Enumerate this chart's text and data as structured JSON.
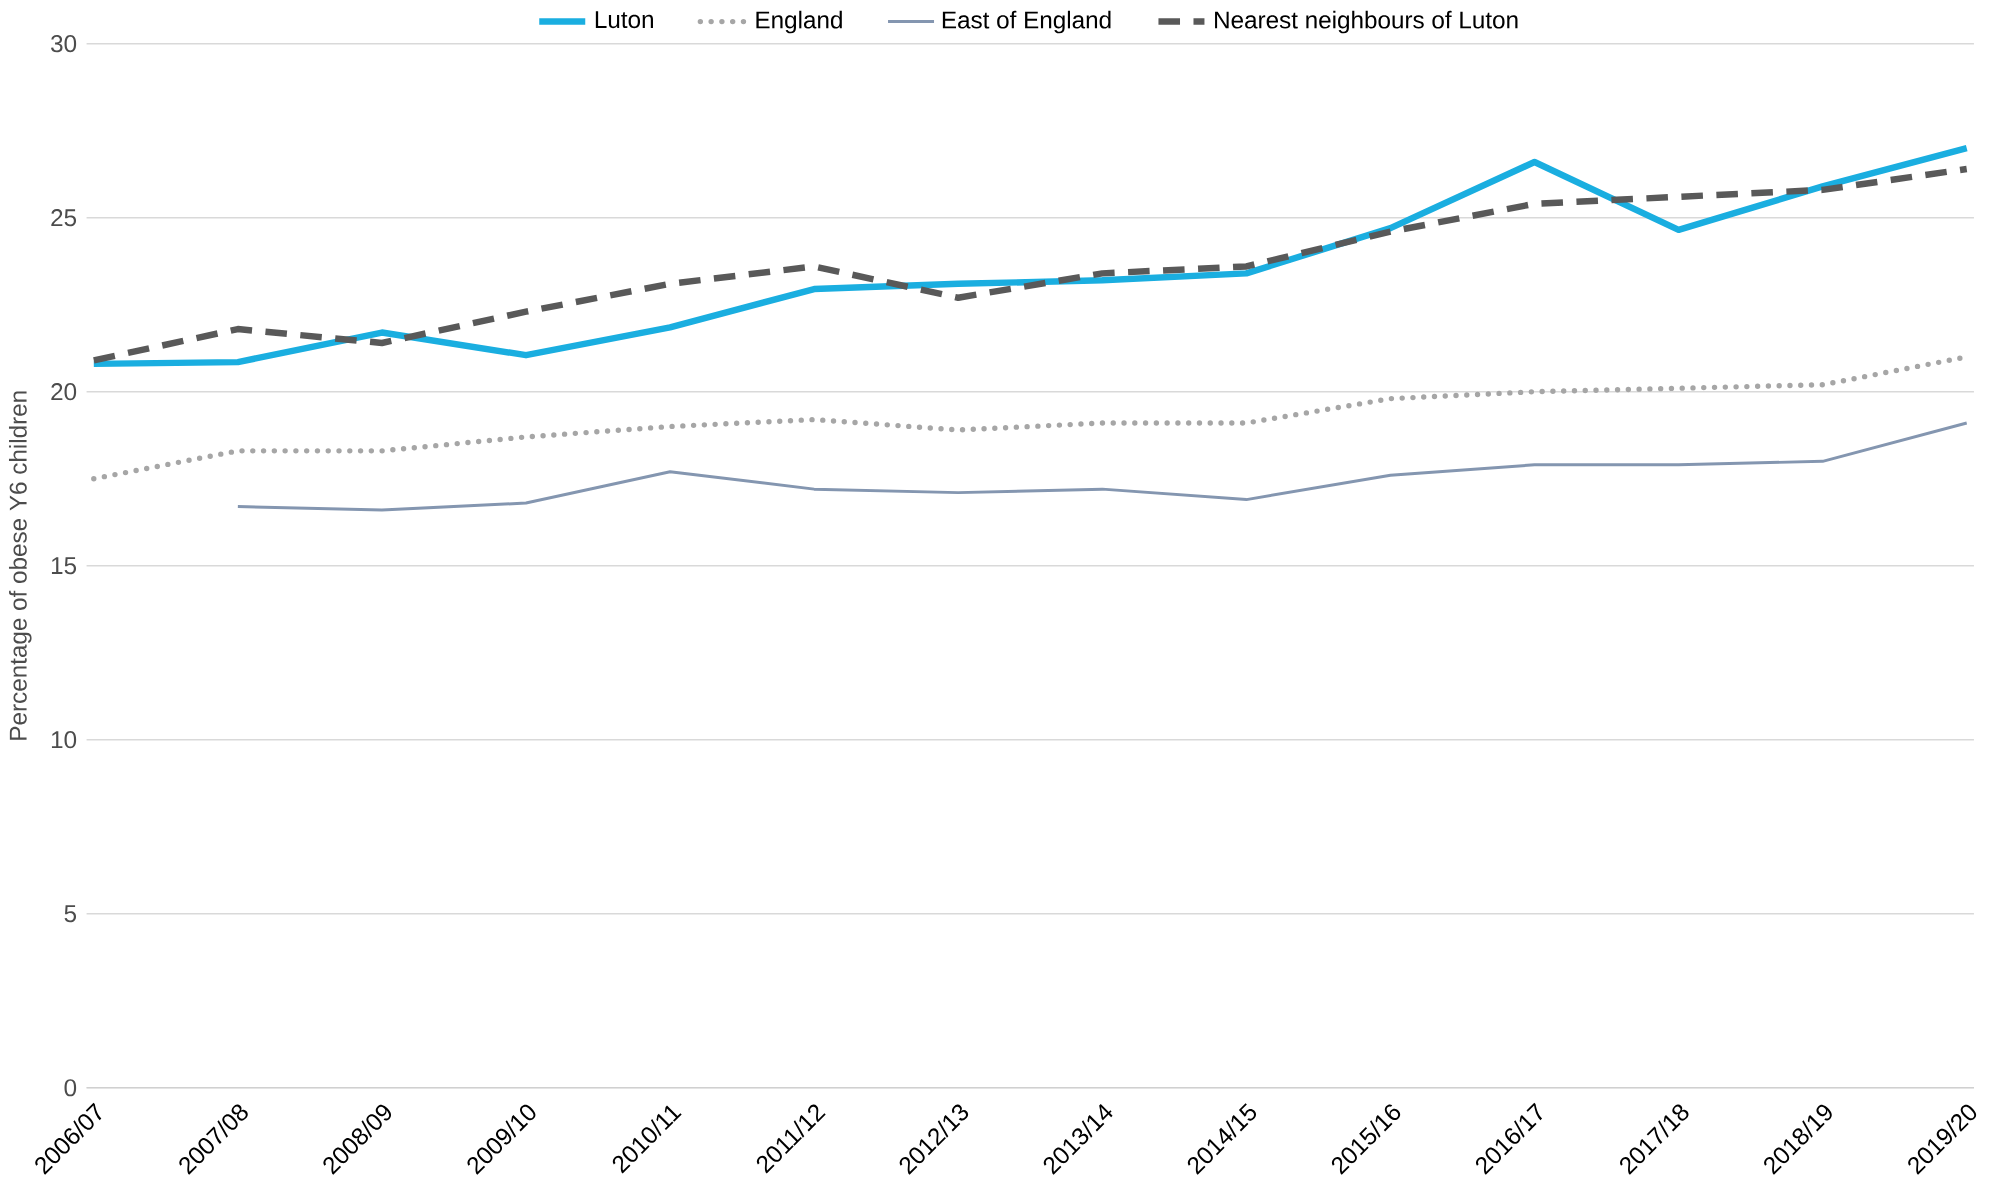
{
  "chart_data": {
    "type": "line",
    "ylabel": "Percentage of obese Y6 children",
    "categories": [
      "2006/07",
      "2007/08",
      "2008/09",
      "2009/10",
      "2010/11",
      "2011/12",
      "2012/13",
      "2013/14",
      "2014/15",
      "2015/16",
      "2016/17",
      "2017/18",
      "2018/19",
      "2019/20"
    ],
    "ylim": [
      0,
      30
    ],
    "yticks": [
      0,
      5,
      10,
      15,
      20,
      25,
      30
    ],
    "grid": "y",
    "legend": "top",
    "marker": "none",
    "series": [
      {
        "name": "Luton",
        "color": "#1aaee0",
        "line_style": "solid",
        "values": [
          20.8,
          20.85,
          21.7,
          21.05,
          21.85,
          22.95,
          23.1,
          23.2,
          23.4,
          24.7,
          26.6,
          24.65,
          25.9,
          27.0
        ]
      },
      {
        "name": "England",
        "color": "#a6a6a6",
        "line_style": "dotted",
        "values": [
          17.5,
          18.3,
          18.3,
          18.7,
          19.0,
          19.2,
          18.9,
          19.1,
          19.1,
          19.8,
          20.0,
          20.1,
          20.2,
          21.0
        ]
      },
      {
        "name": "East of England",
        "color": "#8496b0",
        "line_style": "solid",
        "values": [
          null,
          16.7,
          16.6,
          16.8,
          17.7,
          17.2,
          17.1,
          17.2,
          16.9,
          17.6,
          17.9,
          17.9,
          18.0,
          19.1
        ]
      },
      {
        "name": "Nearest neighbours of Luton",
        "color": "#595959",
        "line_style": "dashed",
        "values": [
          20.9,
          21.8,
          21.4,
          22.3,
          23.1,
          23.6,
          22.7,
          23.4,
          23.6,
          24.6,
          25.4,
          25.6,
          25.8,
          26.4
        ]
      }
    ]
  }
}
